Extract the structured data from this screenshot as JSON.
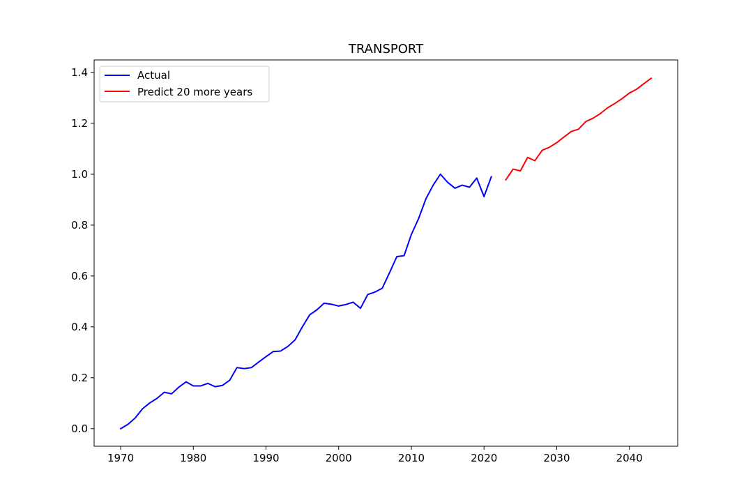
{
  "chart_data": {
    "type": "line",
    "title": "TRANSPORT",
    "xlabel": "",
    "ylabel": "",
    "xlim": [
      1966.35,
      2046.65
    ],
    "ylim": [
      -0.069,
      1.449
    ],
    "x_ticks": [
      1970,
      1980,
      1990,
      2000,
      2010,
      2020,
      2030,
      2040
    ],
    "y_ticks": [
      0.0,
      0.2,
      0.4,
      0.6,
      0.8,
      1.0,
      1.2,
      1.4
    ],
    "y_tick_labels": [
      "0.0",
      "0.2",
      "0.4",
      "0.6",
      "0.8",
      "1.0",
      "1.2",
      "1.4"
    ],
    "grid": false,
    "legend_position": "top-left",
    "series": [
      {
        "name": "Actual",
        "color": "#0000ff",
        "x": [
          1970,
          1971,
          1972,
          1973,
          1974,
          1975,
          1976,
          1977,
          1978,
          1979,
          1980,
          1981,
          1982,
          1983,
          1984,
          1985,
          1986,
          1987,
          1988,
          1989,
          1990,
          1991,
          1992,
          1993,
          1994,
          1995,
          1996,
          1997,
          1998,
          1999,
          2000,
          2001,
          2002,
          2003,
          2004,
          2005,
          2006,
          2007,
          2008,
          2009,
          2010,
          2011,
          2012,
          2013,
          2014,
          2015,
          2016,
          2017,
          2018,
          2019,
          2020,
          2021
        ],
        "values": [
          0.0,
          0.017,
          0.042,
          0.078,
          0.101,
          0.119,
          0.143,
          0.137,
          0.163,
          0.184,
          0.168,
          0.168,
          0.178,
          0.165,
          0.17,
          0.19,
          0.24,
          0.236,
          0.24,
          0.262,
          0.283,
          0.303,
          0.305,
          0.323,
          0.349,
          0.4,
          0.447,
          0.467,
          0.493,
          0.489,
          0.482,
          0.488,
          0.497,
          0.473,
          0.527,
          0.537,
          0.552,
          0.613,
          0.676,
          0.68,
          0.763,
          0.826,
          0.903,
          0.957,
          1.0,
          0.968,
          0.945,
          0.957,
          0.949,
          0.985,
          0.912,
          0.99
        ]
      },
      {
        "name": "Predict 20 more years",
        "color": "#ff0000",
        "x": [
          2023,
          2024,
          2025,
          2026,
          2027,
          2028,
          2029,
          2030,
          2031,
          2032,
          2033,
          2034,
          2035,
          2036,
          2037,
          2038,
          2039,
          2040,
          2041,
          2042,
          2043
        ],
        "values": [
          0.978,
          1.02,
          1.013,
          1.066,
          1.053,
          1.094,
          1.106,
          1.124,
          1.146,
          1.168,
          1.177,
          1.207,
          1.22,
          1.238,
          1.261,
          1.278,
          1.297,
          1.319,
          1.334,
          1.356,
          1.377
        ]
      }
    ]
  }
}
